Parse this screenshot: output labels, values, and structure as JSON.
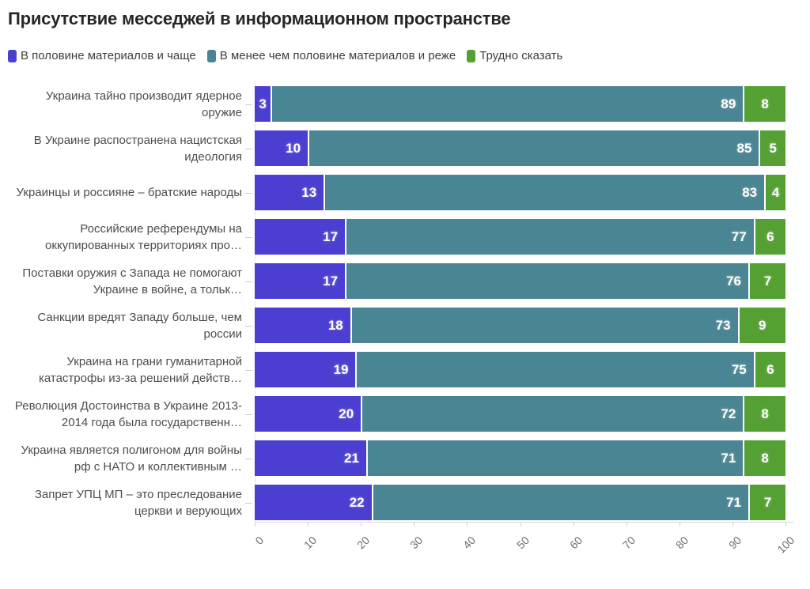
{
  "title": "Присутствие месседжей в информационном пространстве",
  "legend": {
    "items": [
      {
        "label": "В половине материалов и чаще",
        "color": "#4B3FD2"
      },
      {
        "label": "В менее чем половине материалов и реже",
        "color": "#4A8593"
      },
      {
        "label": "Трудно сказать",
        "color": "#55A033"
      }
    ]
  },
  "chart_data": {
    "type": "bar",
    "orientation": "horizontal",
    "stacked": true,
    "title": "Присутствие месседжей в информационном пространстве",
    "categories": [
      "Украина тайно производит ядерное оружие",
      "В Украине распостранена нацистская идеология",
      "Украинцы и россияне – братские народы",
      "Российские референдумы на оккупированных территориях про…",
      "Поставки оружия с Запада не помогают Украине в войне, а тольк…",
      "Санкции вредят Западу больше, чем россии",
      "Украина на грани гуманитарной катастрофы из-за решений действ…",
      "Революция Достоинства в Украине 2013-2014 года была государственн…",
      "Украина является полигоном для войны рф с НАТО и коллективным …",
      "Запрет УПЦ МП – это преследование церкви и верующих"
    ],
    "series": [
      {
        "name": "В половине материалов и чаще",
        "color": "#4B3FD2",
        "values": [
          3,
          10,
          13,
          17,
          17,
          18,
          19,
          20,
          21,
          22
        ]
      },
      {
        "name": "В менее чем половине материалов и реже",
        "color": "#4A8593",
        "values": [
          89,
          85,
          83,
          77,
          76,
          73,
          75,
          72,
          71,
          71
        ]
      },
      {
        "name": "Трудно сказать",
        "color": "#55A033",
        "values": [
          8,
          5,
          4,
          6,
          7,
          9,
          6,
          8,
          8,
          7
        ]
      }
    ],
    "x_ticks": [
      0,
      10,
      20,
      30,
      40,
      50,
      60,
      70,
      80,
      90,
      100
    ],
    "xlim": [
      0,
      100
    ],
    "xlabel": "",
    "ylabel": "",
    "legend_position": "top",
    "grid": "zero-baseline-only"
  }
}
